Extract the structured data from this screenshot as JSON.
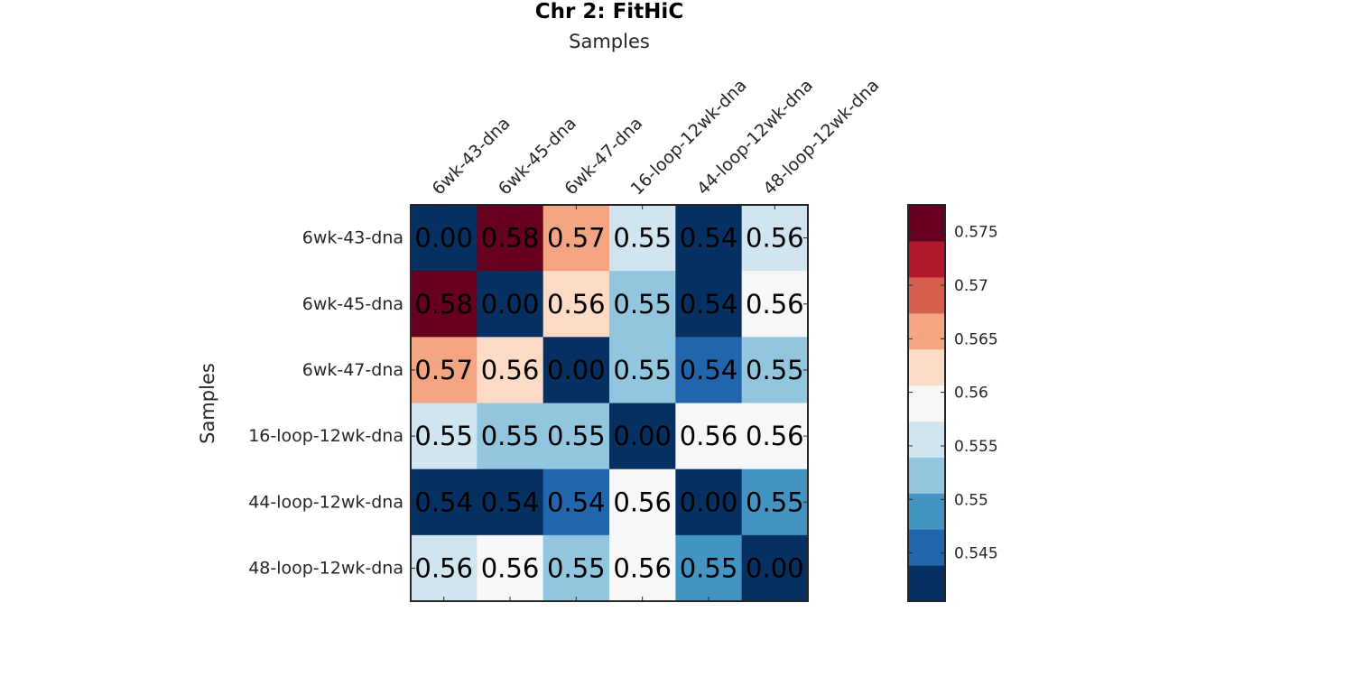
{
  "chart_data": {
    "type": "heatmap",
    "title": "Chr 2: FitHiC",
    "xlabel": "Samples",
    "ylabel": "Samples",
    "x_categories": [
      "6wk-43-dna",
      "6wk-45-dna",
      "6wk-47-dna",
      "16-loop-12wk-dna",
      "44-loop-12wk-dna",
      "48-loop-12wk-dna"
    ],
    "y_categories": [
      "6wk-43-dna",
      "6wk-45-dna",
      "6wk-47-dna",
      "16-loop-12wk-dna",
      "44-loop-12wk-dna",
      "48-loop-12wk-dna"
    ],
    "values": [
      [
        0.0,
        0.58,
        0.57,
        0.55,
        0.54,
        0.56
      ],
      [
        0.58,
        0.0,
        0.56,
        0.55,
        0.54,
        0.56
      ],
      [
        0.57,
        0.56,
        0.0,
        0.55,
        0.54,
        0.55
      ],
      [
        0.55,
        0.55,
        0.55,
        0.0,
        0.56,
        0.56
      ],
      [
        0.54,
        0.54,
        0.54,
        0.56,
        0.0,
        0.55
      ],
      [
        0.56,
        0.56,
        0.55,
        0.56,
        0.55,
        0.0
      ]
    ],
    "cell_colors": [
      [
        "#053061",
        "#67001f",
        "#f4a582",
        "#d1e5f0",
        "#053061",
        "#d1e5f0"
      ],
      [
        "#67001f",
        "#053061",
        "#fddbc7",
        "#92c5de",
        "#053061",
        "#f7f7f7"
      ],
      [
        "#f4a582",
        "#fddbc7",
        "#053061",
        "#92c5de",
        "#2166ac",
        "#92c5de"
      ],
      [
        "#d1e5f0",
        "#92c5de",
        "#92c5de",
        "#053061",
        "#f7f7f7",
        "#f7f7f7"
      ],
      [
        "#053061",
        "#053061",
        "#2166ac",
        "#f7f7f7",
        "#053061",
        "#4393c3"
      ],
      [
        "#d1e5f0",
        "#f7f7f7",
        "#92c5de",
        "#f7f7f7",
        "#4393c3",
        "#053061"
      ]
    ],
    "colorbar": {
      "range": [
        0.5405,
        0.5775
      ],
      "colors_bottom_to_top": [
        "#053061",
        "#2166ac",
        "#4393c3",
        "#92c5de",
        "#d1e5f0",
        "#f7f7f7",
        "#fddbc7",
        "#f4a582",
        "#d6604d",
        "#b2182b",
        "#67001f"
      ],
      "ticks": [
        0.545,
        0.55,
        0.555,
        0.56,
        0.565,
        0.57,
        0.575
      ],
      "tick_labels": [
        "0.545",
        "0.55",
        "0.555",
        "0.56",
        "0.565",
        "0.57",
        "0.575"
      ]
    },
    "grid": false,
    "legend": "colorbar-right"
  }
}
